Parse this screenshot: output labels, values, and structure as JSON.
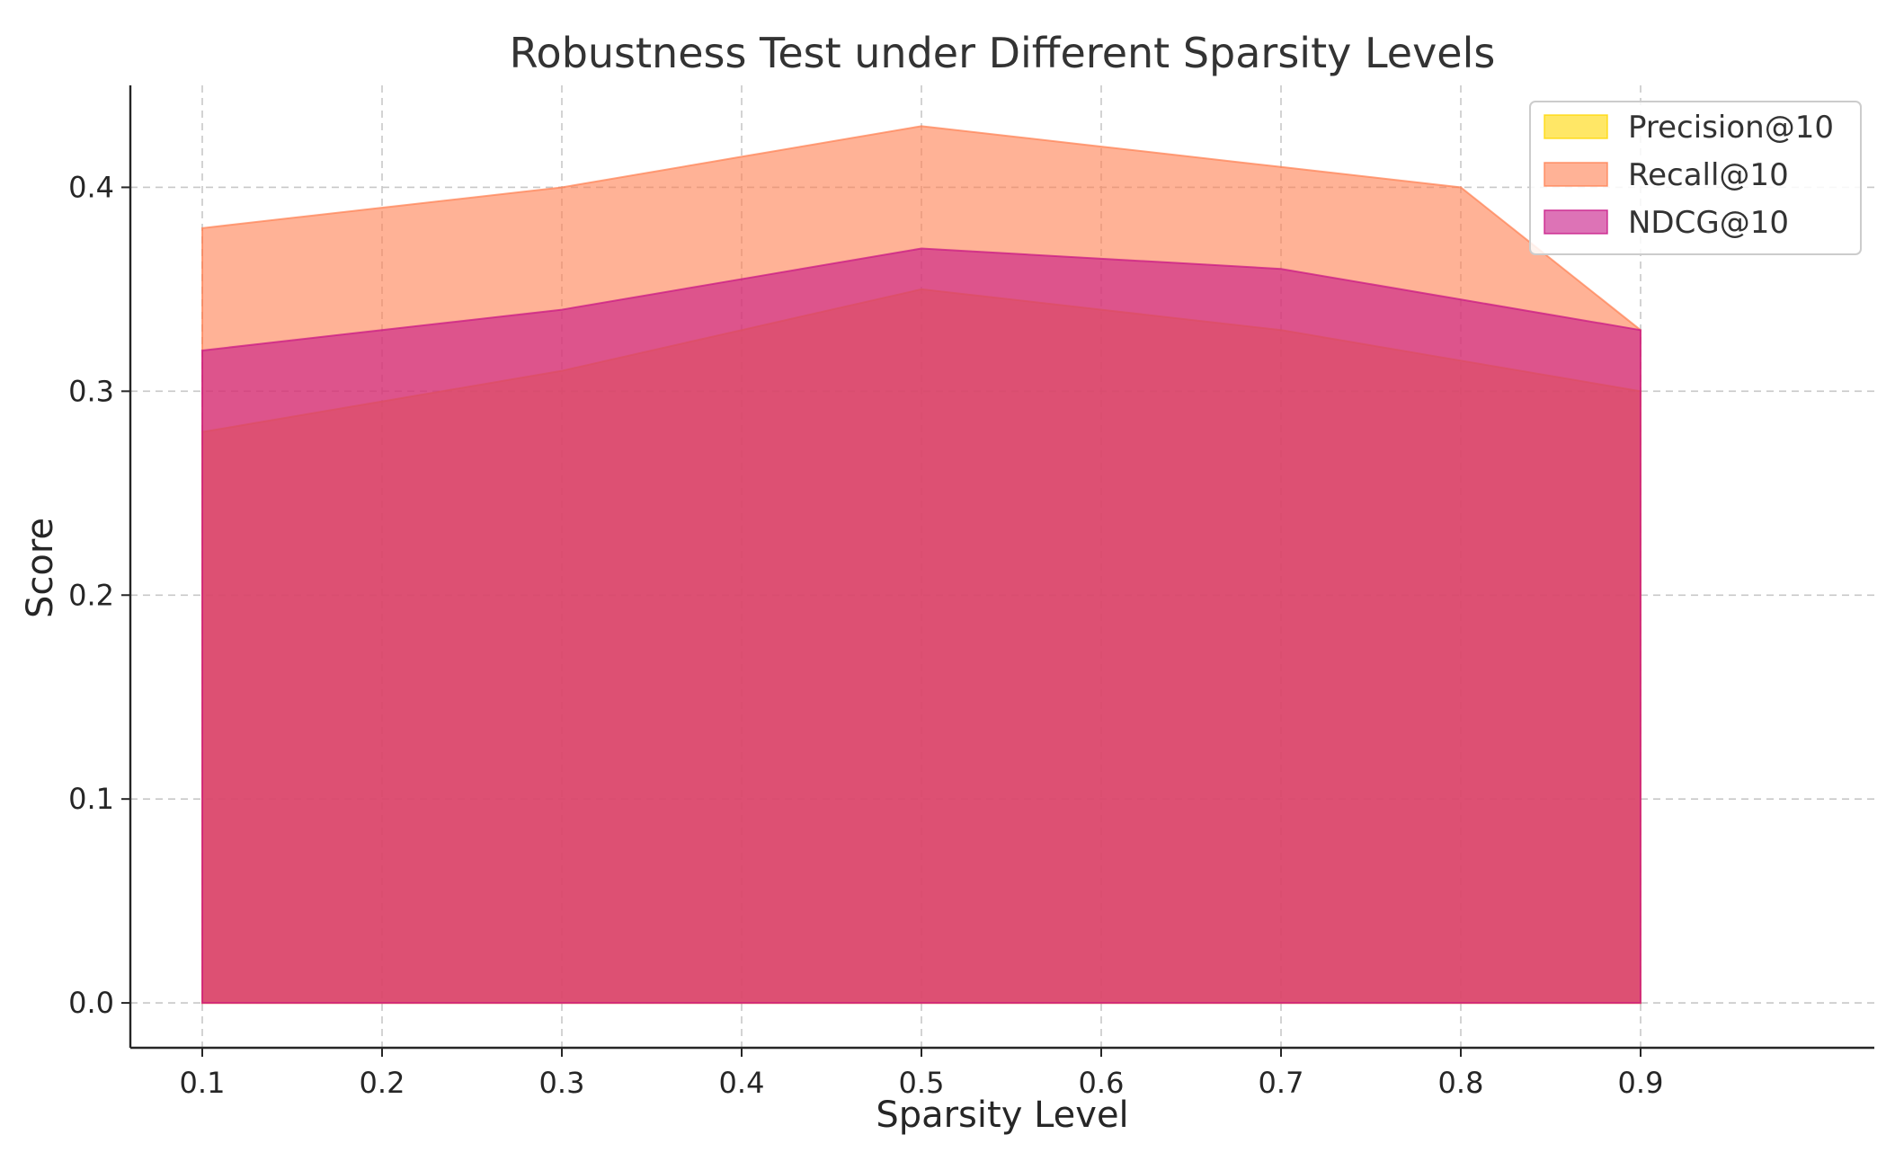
{
  "chart_data": {
    "type": "area",
    "title": "Robustness Test under Different Sparsity Levels",
    "xlabel": "Sparsity Level",
    "ylabel": "Score",
    "x": [
      0.1,
      0.2,
      0.3,
      0.4,
      0.5,
      0.6,
      0.7,
      0.8,
      0.9
    ],
    "x_ticks": [
      "0.1",
      "0.2",
      "0.3",
      "0.4",
      "0.5",
      "0.6",
      "0.7",
      "0.8",
      "0.9"
    ],
    "y_ticks": [
      "0.0",
      "0.1",
      "0.2",
      "0.3",
      "0.4"
    ],
    "xlim": [
      0.06,
      1.03
    ],
    "ylim": [
      -0.022,
      0.45
    ],
    "grid": true,
    "legend_position": "top-right",
    "series": [
      {
        "name": "Precision@10",
        "color": "#ffd700",
        "opacity": 0.6,
        "values": [
          0.28,
          0.295,
          0.31,
          0.33,
          0.35,
          0.34,
          0.33,
          0.315,
          0.3
        ]
      },
      {
        "name": "Recall@10",
        "color": "#ff7f50",
        "opacity": 0.6,
        "values": [
          0.38,
          0.39,
          0.4,
          0.415,
          0.43,
          0.42,
          0.41,
          0.4,
          0.33
        ]
      },
      {
        "name": "NDCG@10",
        "color": "#c71585",
        "opacity": 0.6,
        "values": [
          0.32,
          0.33,
          0.34,
          0.355,
          0.37,
          0.365,
          0.36,
          0.345,
          0.33
        ]
      }
    ]
  }
}
